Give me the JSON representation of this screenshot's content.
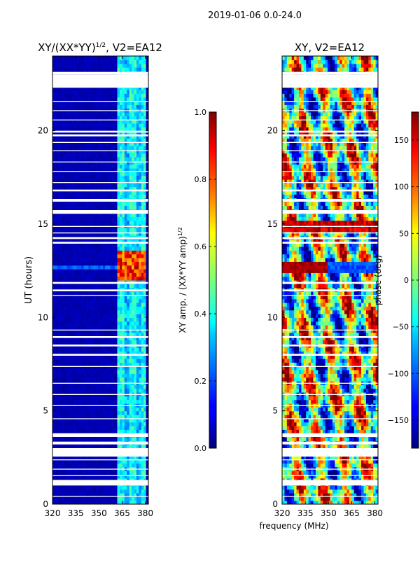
{
  "figure_title": "2019-01-06 0.0-24.0",
  "xlabel": "frequency (MHz)",
  "chart_data": [
    {
      "type": "heatmap",
      "title": "XY/(XX*YY)^1/2, V2=EA12",
      "title_main": "XY/(XX*YY)",
      "title_sup": "1/2",
      "title_tail": ", V2=EA12",
      "ylabel": "UT (hours)",
      "xlim": [
        320,
        382
      ],
      "ylim": [
        0,
        24
      ],
      "xticks": [
        320,
        335,
        350,
        365,
        380
      ],
      "xtick_labels": [
        "320",
        "335",
        "350",
        "365",
        "380"
      ],
      "yticks": [
        0,
        5,
        10,
        15,
        20
      ],
      "ytick_labels": [
        "0",
        "5",
        "10",
        "15",
        "20"
      ],
      "colorbar": {
        "label_main": "XY amp. / (XX*YY amp)",
        "label_sup": "1/2",
        "vmin": 0.0,
        "vmax": 1.0,
        "ticks": [
          0.0,
          0.2,
          0.4,
          0.6,
          0.8,
          1.0
        ],
        "tick_labels": [
          "0.0",
          "0.2",
          "0.4",
          "0.6",
          "0.8",
          "1.0"
        ]
      },
      "description_values": {
        "background": 0.05,
        "active_band_mhz": [
          362,
          380
        ],
        "active_band_level": 0.3,
        "high_interval_hours": [
          12.0,
          13.6
        ],
        "high_level": 0.8
      }
    },
    {
      "type": "heatmap",
      "title": "XY, V2=EA12",
      "ylabel": "",
      "xlim": [
        320,
        382
      ],
      "ylim": [
        0,
        24
      ],
      "xticks": [
        320,
        335,
        350,
        365,
        380
      ],
      "xtick_labels": [
        "320",
        "335",
        "350",
        "365",
        "380"
      ],
      "yticks": [
        0,
        5,
        10,
        15,
        20
      ],
      "ytick_labels": [
        "0",
        "5",
        "10",
        "15",
        "20"
      ],
      "colorbar": {
        "label_main": "phase (deg)",
        "vmin": -180,
        "vmax": 180,
        "ticks": [
          -150,
          -100,
          -50,
          0,
          50,
          100,
          150
        ],
        "tick_labels": [
          "−150",
          "−100",
          "−50",
          "0",
          "50",
          "100",
          "150"
        ]
      }
    }
  ],
  "flagged_hours": [
    [
      23.0,
      23.15
    ],
    [
      22.3,
      23.0
    ],
    [
      21.55,
      21.6
    ],
    [
      21.05,
      21.1
    ],
    [
      20.55,
      20.6
    ],
    [
      19.9,
      20.0
    ],
    [
      19.7,
      19.8
    ],
    [
      19.35,
      19.4
    ],
    [
      18.9,
      18.95
    ],
    [
      18.3,
      18.35
    ],
    [
      17.8,
      17.85
    ],
    [
      17.2,
      17.25
    ],
    [
      16.75,
      16.85
    ],
    [
      16.2,
      16.35
    ],
    [
      15.55,
      15.75
    ],
    [
      14.85,
      14.9
    ],
    [
      14.5,
      14.55
    ],
    [
      14.2,
      14.3
    ],
    [
      13.95,
      14.05
    ],
    [
      11.8,
      11.9
    ],
    [
      11.4,
      11.5
    ],
    [
      11.15,
      11.2
    ],
    [
      9.3,
      9.35
    ],
    [
      8.9,
      9.0
    ],
    [
      8.45,
      8.55
    ],
    [
      7.95,
      8.05
    ],
    [
      7.35,
      7.4
    ],
    [
      6.45,
      6.5
    ],
    [
      5.85,
      5.9
    ],
    [
      5.25,
      5.3
    ],
    [
      4.55,
      4.6
    ],
    [
      3.6,
      3.8
    ],
    [
      3.2,
      3.35
    ],
    [
      2.55,
      3.0
    ],
    [
      2.35,
      2.4
    ],
    [
      1.85,
      1.9
    ],
    [
      1.5,
      1.55
    ],
    [
      1.0,
      1.3
    ],
    [
      0.4,
      0.45
    ]
  ]
}
